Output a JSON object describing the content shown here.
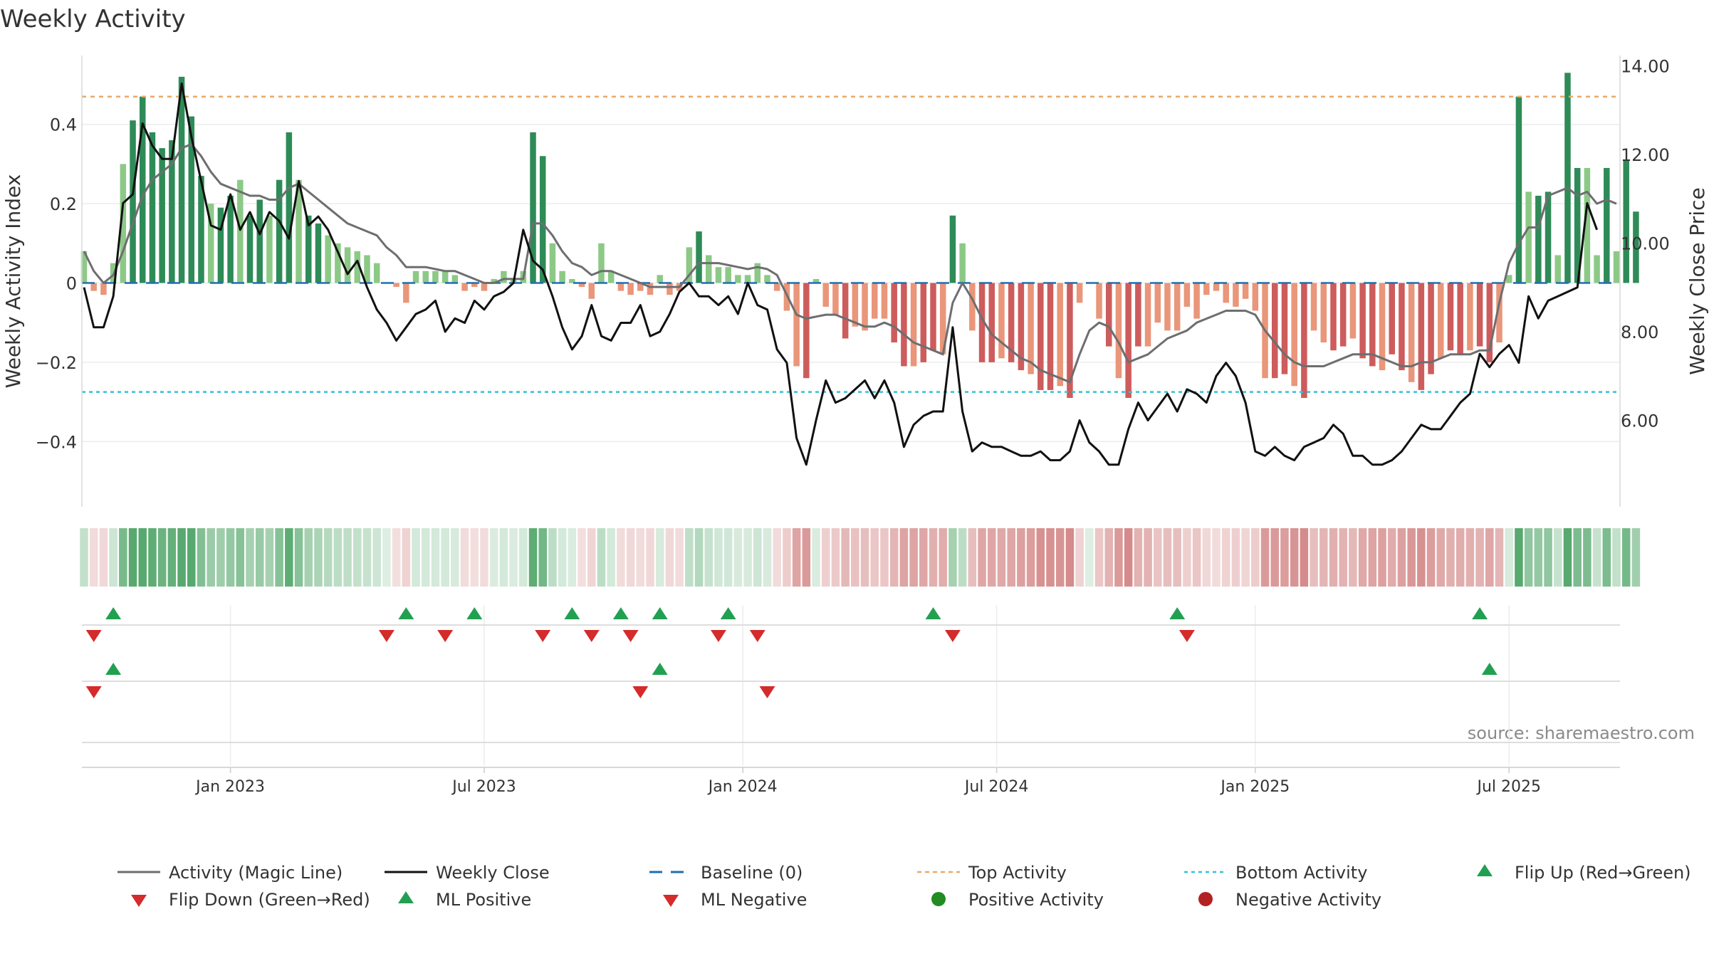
{
  "chart_data": {
    "type": "bar",
    "title": "Weekly Activity",
    "ylabel": "Weekly Activity Index",
    "y2label": "Weekly Close Price",
    "ylim": [
      -0.57,
      0.57
    ],
    "y2lim": [
      4.0,
      14.2
    ],
    "yticks": [
      {
        "v": 0.4,
        "label": "0.4"
      },
      {
        "v": 0.2,
        "label": "0.2"
      },
      {
        "v": 0,
        "label": "0"
      },
      {
        "v": -0.2,
        "label": "−0.2"
      },
      {
        "v": -0.4,
        "label": "−0.4"
      }
    ],
    "y2ticks": [
      {
        "v": 14,
        "label": "14.00"
      },
      {
        "v": 12,
        "label": "12.00"
      },
      {
        "v": 10,
        "label": "10.00"
      },
      {
        "v": 8,
        "label": "8.00"
      },
      {
        "v": 6,
        "label": "6.00"
      }
    ],
    "x_range_weeks": [
      0,
      157
    ],
    "xticks": [
      {
        "w": 15,
        "label": "Jan 2023"
      },
      {
        "w": 41,
        "label": "Jul 2023"
      },
      {
        "w": 67.5,
        "label": "Jan 2024"
      },
      {
        "w": 93.5,
        "label": "Jul 2024"
      },
      {
        "w": 120,
        "label": "Jan 2025"
      },
      {
        "w": 146,
        "label": "Jul 2025"
      }
    ],
    "top_activity": 0.47,
    "bottom_activity": -0.275,
    "baseline": 0,
    "activity": [
      0.08,
      -0.02,
      -0.03,
      0.05,
      0.3,
      0.41,
      0.47,
      0.38,
      0.34,
      0.36,
      0.52,
      0.42,
      0.27,
      0.2,
      0.19,
      0.22,
      0.26,
      0.17,
      0.21,
      0.17,
      0.26,
      0.38,
      0.26,
      0.17,
      0.15,
      0.12,
      0.1,
      0.09,
      0.08,
      0.07,
      0.05,
      0,
      -0.01,
      -0.05,
      0.03,
      0.03,
      0.03,
      0.03,
      0.02,
      -0.02,
      -0.01,
      -0.02,
      0.01,
      0.03,
      0.01,
      0.03,
      0.38,
      0.32,
      0.1,
      0.03,
      0.01,
      -0.01,
      -0.04,
      0.1,
      0.03,
      -0.02,
      -0.03,
      -0.02,
      -0.03,
      0.02,
      -0.03,
      -0.02,
      0.09,
      0.13,
      0.07,
      0.04,
      0.04,
      0.02,
      0.02,
      0.05,
      0.02,
      -0.02,
      -0.07,
      -0.21,
      -0.24,
      0.01,
      -0.06,
      -0.08,
      -0.14,
      -0.11,
      -0.12,
      -0.09,
      -0.09,
      -0.15,
      -0.21,
      -0.21,
      -0.2,
      -0.17,
      -0.18,
      0.17,
      0.1,
      -0.12,
      -0.2,
      -0.2,
      -0.19,
      -0.2,
      -0.22,
      -0.23,
      -0.27,
      -0.27,
      -0.26,
      -0.29,
      -0.05,
      0,
      -0.09,
      -0.16,
      -0.24,
      -0.29,
      -0.16,
      -0.16,
      -0.1,
      -0.12,
      -0.12,
      -0.06,
      -0.09,
      -0.03,
      -0.02,
      -0.05,
      -0.06,
      -0.04,
      -0.07,
      -0.24,
      -0.24,
      -0.23,
      -0.26,
      -0.29,
      -0.12,
      -0.15,
      -0.17,
      -0.16,
      -0.14,
      -0.19,
      -0.21,
      -0.22,
      -0.18,
      -0.22,
      -0.25,
      -0.27,
      -0.23,
      -0.19,
      -0.17,
      -0.18,
      -0.17,
      -0.16,
      -0.2,
      -0.15,
      0.02,
      0.47,
      0.23,
      0.22,
      0.23,
      0.07,
      0.53,
      0.29,
      0.29,
      0.07,
      0.29,
      0.08,
      0.31,
      0.18
    ],
    "weekly_close": [
      9.0,
      8.1,
      8.1,
      8.8,
      10.9,
      11.1,
      12.7,
      12.2,
      11.9,
      11.9,
      13.6,
      12.4,
      11.4,
      10.4,
      10.3,
      11.1,
      10.3,
      10.7,
      10.2,
      10.7,
      10.5,
      10.1,
      11.4,
      10.4,
      10.6,
      10.3,
      9.8,
      9.3,
      9.6,
      9.0,
      8.5,
      8.2,
      7.8,
      8.1,
      8.4,
      8.5,
      8.7,
      8.0,
      8.3,
      8.2,
      8.7,
      8.5,
      8.8,
      8.9,
      9.1,
      10.3,
      9.6,
      9.4,
      8.8,
      8.1,
      7.6,
      7.9,
      8.6,
      7.9,
      7.8,
      8.2,
      8.2,
      8.6,
      7.9,
      8.0,
      8.4,
      8.9,
      9.1,
      8.8,
      8.8,
      8.6,
      8.8,
      8.4,
      9.1,
      8.6,
      8.5,
      7.6,
      7.3,
      5.6,
      5.0,
      6.0,
      6.9,
      6.4,
      6.5,
      6.7,
      6.9,
      6.5,
      6.9,
      6.4,
      5.4,
      5.9,
      6.1,
      6.2,
      6.2,
      8.1,
      6.2,
      5.3,
      5.5,
      5.4,
      5.4,
      5.3,
      5.2,
      5.2,
      5.3,
      5.1,
      5.1,
      5.3,
      6.0,
      5.5,
      5.3,
      5.0,
      5.0,
      5.8,
      6.4,
      6.0,
      6.3,
      6.6,
      6.2,
      6.7,
      6.6,
      6.4,
      7.0,
      7.3,
      7.0,
      6.4,
      5.3,
      5.2,
      5.4,
      5.2,
      5.1,
      5.4,
      5.5,
      5.6,
      5.9,
      5.7,
      5.2,
      5.2,
      5.0,
      5.0,
      5.1,
      5.3,
      5.6,
      5.9,
      5.8,
      5.8,
      6.1,
      6.4,
      6.6,
      7.5,
      7.2,
      7.5,
      7.7,
      7.3,
      8.8,
      8.3,
      8.7,
      8.8,
      8.9,
      9.0,
      10.9,
      10.3
    ],
    "magic_line": [
      0.08,
      0.03,
      0.0,
      0.02,
      0.08,
      0.15,
      0.22,
      0.26,
      0.28,
      0.3,
      0.34,
      0.35,
      0.32,
      0.28,
      0.25,
      0.24,
      0.23,
      0.22,
      0.22,
      0.21,
      0.21,
      0.24,
      0.25,
      0.23,
      0.21,
      0.19,
      0.17,
      0.15,
      0.14,
      0.13,
      0.12,
      0.09,
      0.07,
      0.04,
      0.04,
      0.04,
      0.035,
      0.03,
      0.03,
      0.02,
      0.01,
      0.0,
      0.0,
      0.01,
      0.01,
      0.01,
      0.15,
      0.15,
      0.12,
      0.08,
      0.05,
      0.04,
      0.02,
      0.03,
      0.03,
      0.02,
      0.01,
      0.0,
      -0.01,
      -0.01,
      -0.01,
      -0.01,
      0.02,
      0.05,
      0.05,
      0.05,
      0.045,
      0.04,
      0.035,
      0.04,
      0.035,
      0.02,
      -0.03,
      -0.08,
      -0.09,
      -0.085,
      -0.08,
      -0.08,
      -0.09,
      -0.1,
      -0.11,
      -0.11,
      -0.1,
      -0.11,
      -0.13,
      -0.15,
      -0.16,
      -0.17,
      -0.18,
      -0.05,
      0.0,
      -0.04,
      -0.09,
      -0.13,
      -0.15,
      -0.17,
      -0.19,
      -0.2,
      -0.22,
      -0.23,
      -0.24,
      -0.25,
      -0.18,
      -0.12,
      -0.1,
      -0.11,
      -0.15,
      -0.2,
      -0.19,
      -0.18,
      -0.16,
      -0.14,
      -0.13,
      -0.12,
      -0.1,
      -0.09,
      -0.08,
      -0.07,
      -0.07,
      -0.07,
      -0.08,
      -0.12,
      -0.15,
      -0.18,
      -0.2,
      -0.21,
      -0.21,
      -0.21,
      -0.2,
      -0.19,
      -0.18,
      -0.18,
      -0.18,
      -0.19,
      -0.2,
      -0.21,
      -0.21,
      -0.2,
      -0.2,
      -0.19,
      -0.18,
      -0.18,
      -0.18,
      -0.17,
      -0.17,
      -0.05,
      0.05,
      0.1,
      0.14,
      0.14,
      0.22,
      0.23,
      0.24,
      0.22,
      0.23,
      0.2,
      0.21,
      0.2
    ],
    "flip_up_weeks": [
      3,
      33,
      40,
      50,
      55,
      59,
      66,
      87,
      112,
      143
    ],
    "flip_down_weeks": [
      1,
      31,
      37,
      47,
      52,
      56,
      65,
      69,
      89,
      113
    ],
    "ml_positive_weeks": [
      3,
      59,
      144
    ],
    "ml_negative_weeks": [
      1,
      57,
      70
    ],
    "legend": [
      {
        "key": "magic",
        "label": "Activity (Magic Line)"
      },
      {
        "key": "close",
        "label": "Weekly Close"
      },
      {
        "key": "baseline",
        "label": "Baseline (0)"
      },
      {
        "key": "top",
        "label": "Top Activity"
      },
      {
        "key": "bottom",
        "label": "Bottom Activity"
      },
      {
        "key": "flipup",
        "label": "Flip Up (Red→Green)"
      },
      {
        "key": "flipdown",
        "label": "Flip Down (Green→Red)"
      },
      {
        "key": "mlpos",
        "label": "ML Positive"
      },
      {
        "key": "mlneg",
        "label": "ML Negative"
      },
      {
        "key": "posact",
        "label": "Positive Activity"
      },
      {
        "key": "negact",
        "label": "Negative Activity"
      }
    ],
    "source": "source: sharemaestro.com"
  },
  "colors": {
    "pos_strong": "#2e8b57",
    "pos_weak": "#8cc986",
    "neg_strong": "#cd5c5c",
    "neg_weak": "#e9967a",
    "magic": "#6e6e70",
    "close": "#111111",
    "baseline": "#1f6fb0",
    "top": "#e8a96a",
    "bottom": "#33c2d8",
    "up_marker": "#22a052",
    "down_marker": "#d42b2b",
    "pos_dot": "#228b22",
    "neg_dot": "#b22222"
  }
}
